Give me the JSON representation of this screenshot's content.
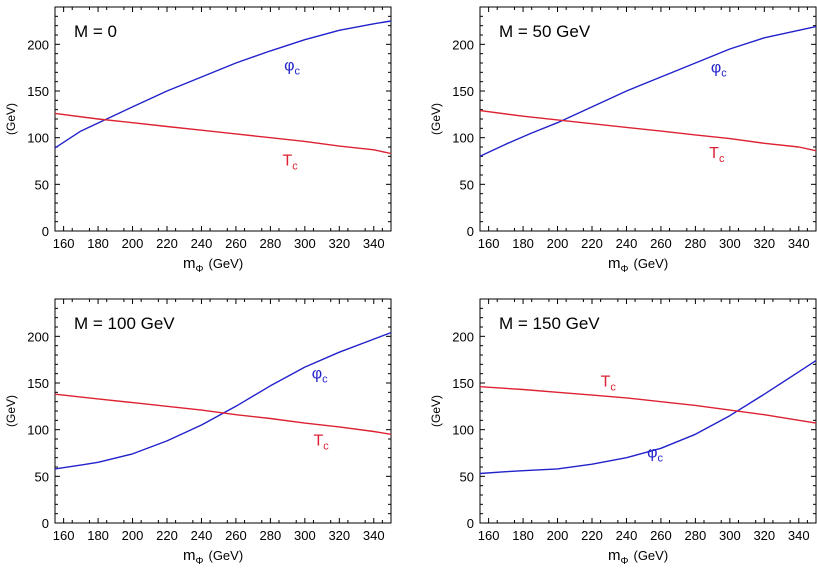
{
  "chart_data": [
    {
      "type": "line",
      "title": "M = 0",
      "xlabel": {
        "main": "m",
        "sub": "Φ",
        "unit": "(GeV)"
      },
      "ylabel": "(GeV)",
      "xlim": [
        155,
        350
      ],
      "ylim": [
        0,
        240
      ],
      "xticks": [
        160,
        180,
        200,
        220,
        240,
        260,
        280,
        300,
        320,
        340
      ],
      "yticks": [
        0,
        50,
        100,
        150,
        200
      ],
      "series": [
        {
          "name": "φc",
          "label_main": "φ",
          "label_sub": "c",
          "color": "#2222cc",
          "label_at": [
            288,
            172
          ],
          "x": [
            155,
            170,
            185,
            200,
            220,
            240,
            260,
            280,
            300,
            320,
            340,
            350
          ],
          "y": [
            89,
            107,
            120,
            133,
            150,
            165,
            180,
            193,
            205,
            215,
            222,
            225
          ]
        },
        {
          "name": "Tc",
          "label_main": "T",
          "label_sub": "c",
          "color": "#dd2233",
          "label_at": [
            287,
            70
          ],
          "x": [
            155,
            180,
            200,
            220,
            240,
            260,
            280,
            300,
            320,
            340,
            350
          ],
          "y": [
            126,
            120,
            116,
            112,
            108,
            104,
            100,
            96,
            91,
            87,
            83
          ]
        }
      ]
    },
    {
      "type": "line",
      "title": "M = 50 GeV",
      "xlabel": {
        "main": "m",
        "sub": "Φ",
        "unit": "(GeV)"
      },
      "ylabel": "(GeV)",
      "xlim": [
        155,
        350
      ],
      "ylim": [
        0,
        240
      ],
      "xticks": [
        160,
        180,
        200,
        220,
        240,
        260,
        280,
        300,
        320,
        340
      ],
      "yticks": [
        0,
        50,
        100,
        150,
        200
      ],
      "series": [
        {
          "name": "φc",
          "label_main": "φ",
          "label_sub": "c",
          "color": "#2222cc",
          "label_at": [
            289,
            170
          ],
          "x": [
            155,
            170,
            185,
            200,
            220,
            240,
            260,
            280,
            300,
            320,
            340,
            350
          ],
          "y": [
            80,
            93,
            105,
            116,
            133,
            150,
            165,
            180,
            195,
            207,
            215,
            219
          ]
        },
        {
          "name": "Tc",
          "label_main": "T",
          "label_sub": "c",
          "color": "#dd2233",
          "label_at": [
            288,
            78
          ],
          "x": [
            155,
            180,
            200,
            220,
            240,
            260,
            280,
            300,
            320,
            340,
            350
          ],
          "y": [
            129,
            123,
            119,
            115,
            111,
            107,
            103,
            99,
            94,
            90,
            86
          ]
        }
      ]
    },
    {
      "type": "line",
      "title": "M = 100 GeV",
      "xlabel": {
        "main": "m",
        "sub": "Φ",
        "unit": "(GeV)"
      },
      "ylabel": "(GeV)",
      "xlim": [
        155,
        350
      ],
      "ylim": [
        0,
        240
      ],
      "xticks": [
        160,
        180,
        200,
        220,
        240,
        260,
        280,
        300,
        320,
        340
      ],
      "yticks": [
        0,
        50,
        100,
        150,
        200
      ],
      "series": [
        {
          "name": "φc",
          "label_main": "φ",
          "label_sub": "c",
          "color": "#2222cc",
          "label_at": [
            304,
            155
          ],
          "x": [
            155,
            170,
            180,
            200,
            220,
            240,
            260,
            280,
            300,
            320,
            340,
            350
          ],
          "y": [
            58,
            62,
            65,
            74,
            88,
            105,
            125,
            147,
            167,
            183,
            197,
            204
          ]
        },
        {
          "name": "Tc",
          "label_main": "T",
          "label_sub": "c",
          "color": "#dd2233",
          "label_at": [
            305,
            83
          ],
          "x": [
            155,
            180,
            200,
            220,
            240,
            260,
            280,
            300,
            320,
            340,
            350
          ],
          "y": [
            138,
            133,
            129,
            125,
            121,
            116,
            112,
            107,
            103,
            98,
            95
          ]
        }
      ]
    },
    {
      "type": "line",
      "title": "M = 150 GeV",
      "xlabel": {
        "main": "m",
        "sub": "Φ",
        "unit": "(GeV)"
      },
      "ylabel": "(GeV)",
      "xlim": [
        155,
        350
      ],
      "ylim": [
        0,
        240
      ],
      "xticks": [
        160,
        180,
        200,
        220,
        240,
        260,
        280,
        300,
        320,
        340
      ],
      "yticks": [
        0,
        50,
        100,
        150,
        200
      ],
      "series": [
        {
          "name": "φc",
          "label_main": "φ",
          "label_sub": "c",
          "color": "#2222cc",
          "label_at": [
            252,
            70
          ],
          "x": [
            155,
            170,
            180,
            200,
            220,
            240,
            260,
            280,
            300,
            320,
            340,
            350
          ],
          "y": [
            53,
            55,
            56,
            58,
            63,
            70,
            80,
            95,
            115,
            138,
            162,
            174
          ]
        },
        {
          "name": "Tc",
          "label_main": "T",
          "label_sub": "c",
          "color": "#dd2233",
          "label_at": [
            225,
            146
          ],
          "x": [
            155,
            180,
            200,
            220,
            240,
            260,
            280,
            300,
            320,
            340,
            350
          ],
          "y": [
            146,
            143,
            140,
            137,
            134,
            130,
            126,
            121,
            116,
            110,
            107
          ]
        }
      ]
    }
  ]
}
